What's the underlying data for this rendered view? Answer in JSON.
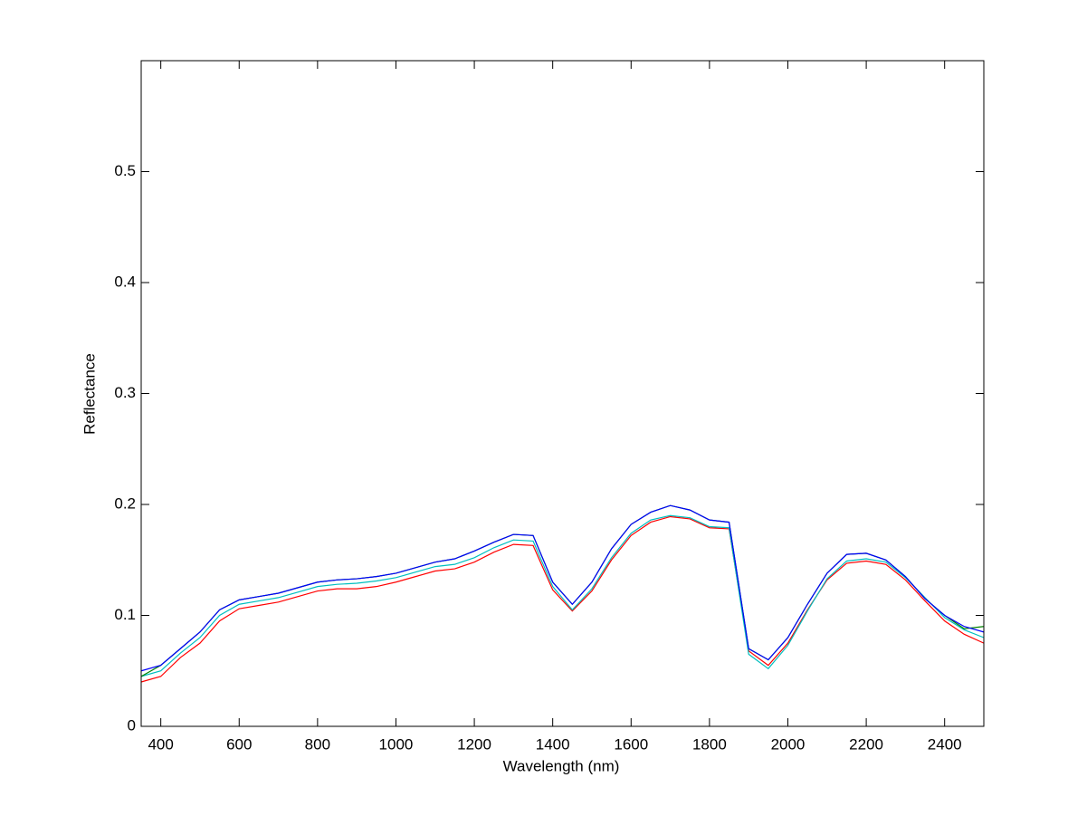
{
  "chart_data": {
    "type": "line",
    "xlabel": "Wavelength (nm)",
    "ylabel": "Reflectance",
    "x": [
      350,
      400,
      450,
      500,
      550,
      600,
      650,
      700,
      750,
      800,
      850,
      900,
      950,
      1000,
      1050,
      1100,
      1150,
      1200,
      1250,
      1300,
      1350,
      1400,
      1450,
      1500,
      1550,
      1600,
      1650,
      1700,
      1750,
      1800,
      1850,
      1900,
      1950,
      2000,
      2050,
      2100,
      2150,
      2200,
      2250,
      2300,
      2350,
      2400,
      2450,
      2500
    ],
    "series": [
      {
        "color": "#ff0000",
        "values": [
          0.04,
          0.045,
          0.062,
          0.075,
          0.095,
          0.106,
          0.109,
          0.112,
          0.117,
          0.122,
          0.124,
          0.124,
          0.126,
          0.13,
          0.135,
          0.14,
          0.142,
          0.148,
          0.157,
          0.164,
          0.163,
          0.123,
          0.104,
          0.122,
          0.15,
          0.172,
          0.184,
          0.189,
          0.187,
          0.179,
          0.178,
          0.068,
          0.055,
          0.075,
          0.105,
          0.132,
          0.147,
          0.149,
          0.146,
          0.132,
          0.113,
          0.095,
          0.083,
          0.075
        ]
      },
      {
        "color": "#00bfbf",
        "values": [
          0.045,
          0.05,
          0.066,
          0.08,
          0.1,
          0.11,
          0.113,
          0.116,
          0.121,
          0.126,
          0.128,
          0.129,
          0.131,
          0.134,
          0.139,
          0.144,
          0.146,
          0.152,
          0.161,
          0.168,
          0.167,
          0.126,
          0.105,
          0.124,
          0.152,
          0.174,
          0.186,
          0.19,
          0.188,
          0.18,
          0.179,
          0.065,
          0.052,
          0.073,
          0.104,
          0.133,
          0.149,
          0.151,
          0.148,
          0.134,
          0.116,
          0.098,
          0.087,
          0.08
        ]
      },
      {
        "color": "#008000",
        "values": [
          0.045,
          0.055,
          0.07,
          0.085,
          0.105,
          0.114,
          0.117,
          0.12,
          0.125,
          0.13,
          0.132,
          0.133,
          0.135,
          0.138,
          0.143,
          0.148,
          0.151,
          0.158,
          0.166,
          0.173,
          0.172,
          0.13,
          0.11,
          0.13,
          0.16,
          0.182,
          0.193,
          0.199,
          0.195,
          0.186,
          0.184,
          0.07,
          0.06,
          0.08,
          0.11,
          0.138,
          0.155,
          0.156,
          0.15,
          0.135,
          0.115,
          0.1,
          0.088,
          0.09
        ]
      },
      {
        "color": "#0000ff",
        "values": [
          0.05,
          0.055,
          0.07,
          0.085,
          0.105,
          0.114,
          0.117,
          0.12,
          0.125,
          0.13,
          0.132,
          0.133,
          0.135,
          0.138,
          0.143,
          0.148,
          0.151,
          0.158,
          0.166,
          0.173,
          0.172,
          0.13,
          0.11,
          0.13,
          0.16,
          0.182,
          0.193,
          0.199,
          0.195,
          0.186,
          0.184,
          0.07,
          0.06,
          0.08,
          0.11,
          0.138,
          0.155,
          0.156,
          0.15,
          0.135,
          0.115,
          0.1,
          0.09,
          0.085
        ]
      }
    ],
    "xlim": [
      350,
      2500
    ],
    "ylim": [
      0,
      0.6
    ],
    "xticks": [
      400,
      600,
      800,
      1000,
      1200,
      1400,
      1600,
      1800,
      2000,
      2200,
      2400
    ],
    "yticks": [
      0,
      0.1,
      0.2,
      0.3,
      0.4,
      0.5
    ],
    "grid": false
  }
}
